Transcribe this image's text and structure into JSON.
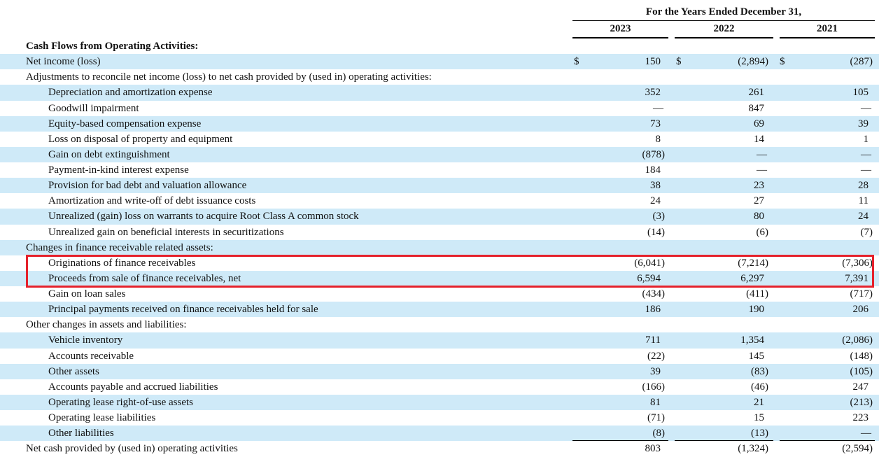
{
  "header": {
    "period_title": "For the Years Ended December 31,",
    "years": [
      "2023",
      "2022",
      "2021"
    ]
  },
  "rows": [
    {
      "label": "Cash Flows from Operating Activities:",
      "indent": 0,
      "section": true,
      "values": [
        "",
        "",
        ""
      ],
      "currency": false,
      "shade": false
    },
    {
      "label": "Net income (loss)",
      "indent": 0,
      "values": [
        "150",
        "(2,894)",
        "(287)"
      ],
      "currency": true,
      "shade": true
    },
    {
      "label": "Adjustments to reconcile net income (loss) to net cash provided by (used in) operating activities:",
      "indent": 0,
      "values": [
        "",
        "",
        ""
      ],
      "shade": false
    },
    {
      "label": "Depreciation and amortization expense",
      "indent": 1,
      "values": [
        "352",
        "261",
        "105"
      ],
      "shade": true
    },
    {
      "label": "Goodwill impairment",
      "indent": 1,
      "values": [
        "—",
        "847",
        "—"
      ],
      "shade": false
    },
    {
      "label": "Equity-based compensation expense",
      "indent": 1,
      "values": [
        "73",
        "69",
        "39"
      ],
      "shade": true
    },
    {
      "label": "Loss on disposal of property and equipment",
      "indent": 1,
      "values": [
        "8",
        "14",
        "1"
      ],
      "shade": false
    },
    {
      "label": "Gain on debt extinguishment",
      "indent": 1,
      "values": [
        "(878)",
        "—",
        "—"
      ],
      "shade": true
    },
    {
      "label": "Payment-in-kind interest expense",
      "indent": 1,
      "values": [
        "184",
        "—",
        "—"
      ],
      "shade": false
    },
    {
      "label": "Provision for bad debt and valuation allowance",
      "indent": 1,
      "values": [
        "38",
        "23",
        "28"
      ],
      "shade": true
    },
    {
      "label": "Amortization and write-off of debt issuance costs",
      "indent": 1,
      "values": [
        "24",
        "27",
        "11"
      ],
      "shade": false
    },
    {
      "label": "Unrealized (gain) loss on warrants to acquire Root Class A common stock",
      "indent": 1,
      "values": [
        "(3)",
        "80",
        "24"
      ],
      "shade": true
    },
    {
      "label": "Unrealized gain on beneficial interests in securitizations",
      "indent": 1,
      "values": [
        "(14)",
        "(6)",
        "(7)"
      ],
      "shade": false
    },
    {
      "label": "Changes in finance receivable related assets:",
      "indent": 0,
      "values": [
        "",
        "",
        ""
      ],
      "shade": true
    },
    {
      "label": "Originations of finance receivables",
      "indent": 1,
      "values": [
        "(6,041)",
        "(7,214)",
        "(7,306)"
      ],
      "shade": false
    },
    {
      "label": "Proceeds from sale of finance receivables, net",
      "indent": 1,
      "values": [
        "6,594",
        "6,297",
        "7,391"
      ],
      "shade": true
    },
    {
      "label": "Gain on loan sales",
      "indent": 1,
      "values": [
        "(434)",
        "(411)",
        "(717)"
      ],
      "shade": false
    },
    {
      "label": "Principal payments received on finance receivables held for sale",
      "indent": 1,
      "values": [
        "186",
        "190",
        "206"
      ],
      "shade": true
    },
    {
      "label": "Other changes in assets and liabilities:",
      "indent": 0,
      "values": [
        "",
        "",
        ""
      ],
      "shade": false
    },
    {
      "label": "Vehicle inventory",
      "indent": 1,
      "values": [
        "711",
        "1,354",
        "(2,086)"
      ],
      "shade": true
    },
    {
      "label": "Accounts receivable",
      "indent": 1,
      "values": [
        "(22)",
        "145",
        "(148)"
      ],
      "shade": false
    },
    {
      "label": "Other assets",
      "indent": 1,
      "values": [
        "39",
        "(83)",
        "(105)"
      ],
      "shade": true
    },
    {
      "label": "Accounts payable and accrued liabilities",
      "indent": 1,
      "values": [
        "(166)",
        "(46)",
        "247"
      ],
      "shade": false
    },
    {
      "label": "Operating lease right-of-use assets",
      "indent": 1,
      "values": [
        "81",
        "21",
        "(213)"
      ],
      "shade": true
    },
    {
      "label": "Operating lease liabilities",
      "indent": 1,
      "values": [
        "(71)",
        "15",
        "223"
      ],
      "shade": false
    },
    {
      "label": "Other liabilities",
      "indent": 1,
      "values": [
        "(8)",
        "(13)",
        "—"
      ],
      "shade": true,
      "underline": true
    },
    {
      "label": "Net cash provided by (used in) operating activities",
      "indent": 0,
      "values": [
        "803",
        "(1,324)",
        "(2,594)"
      ],
      "shade": false
    }
  ],
  "currency_symbol": "$",
  "highlight": {
    "color": "#e5212b",
    "rows": [
      "Originations of finance receivables",
      "Proceeds from sale of finance receivables, net"
    ]
  }
}
